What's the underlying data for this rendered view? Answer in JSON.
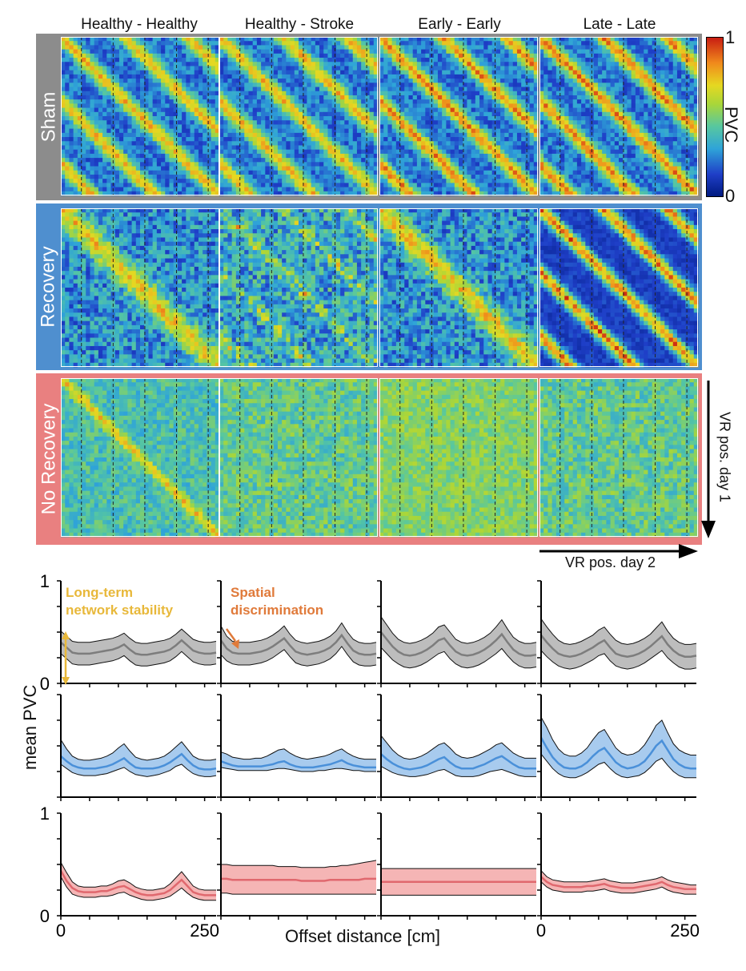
{
  "column_titles": [
    "Healthy - Healthy",
    "Healthy - Stroke",
    "Early - Early",
    "Late - Late"
  ],
  "row_labels": [
    "Sham",
    "Recovery",
    "No Recovery"
  ],
  "row_colors": {
    "Sham": "#8c8c8c",
    "Recovery": "#4f8fcf",
    "No Recovery": "#e98080"
  },
  "colorbar": {
    "label": "PVC",
    "max_label": "1",
    "min_label": "0",
    "colormap": [
      "#001a80",
      "#1f3fc8",
      "#2fa4d8",
      "#57c7a0",
      "#a8d63a",
      "#e6d821",
      "#f08a1c",
      "#c81d12"
    ]
  },
  "axis_arrows": {
    "vertical": "VR pos. day 1",
    "horizontal": "VR pos. day 2"
  },
  "annotations": {
    "stability": "Long-term\nnetwork stability",
    "stability_color": "#e8b83a",
    "discrimination": "Spatial\ndiscrimination",
    "discrimination_color": "#e07a3a"
  },
  "chart_data": {
    "type": "line",
    "title": "",
    "xlabel": "Offset distance [cm]",
    "ylabel": "mean PVC",
    "xlim": [
      0,
      270
    ],
    "ylim": [
      0,
      1
    ],
    "xticks": [
      0,
      250
    ],
    "yticks_labeled": [
      0,
      1
    ],
    "x": [
      0,
      10,
      20,
      30,
      40,
      50,
      60,
      70,
      80,
      90,
      100,
      110,
      120,
      130,
      140,
      150,
      160,
      170,
      180,
      190,
      200,
      210,
      220,
      230,
      240,
      250,
      260,
      270
    ],
    "panels": [
      {
        "row": "Sham",
        "column": "Healthy - Healthy",
        "mean": [
          0.4,
          0.35,
          0.3,
          0.29,
          0.29,
          0.29,
          0.3,
          0.31,
          0.32,
          0.33,
          0.35,
          0.38,
          0.33,
          0.29,
          0.28,
          0.28,
          0.29,
          0.3,
          0.31,
          0.33,
          0.37,
          0.42,
          0.37,
          0.32,
          0.3,
          0.29,
          0.29,
          0.3
        ],
        "upper": [
          0.51,
          0.46,
          0.41,
          0.4,
          0.4,
          0.4,
          0.41,
          0.42,
          0.43,
          0.44,
          0.46,
          0.49,
          0.44,
          0.4,
          0.39,
          0.39,
          0.4,
          0.41,
          0.42,
          0.44,
          0.48,
          0.53,
          0.48,
          0.43,
          0.41,
          0.4,
          0.4,
          0.41
        ],
        "lower": [
          0.29,
          0.24,
          0.19,
          0.18,
          0.18,
          0.18,
          0.19,
          0.2,
          0.21,
          0.22,
          0.24,
          0.27,
          0.22,
          0.18,
          0.17,
          0.17,
          0.18,
          0.19,
          0.2,
          0.22,
          0.26,
          0.31,
          0.26,
          0.21,
          0.19,
          0.18,
          0.18,
          0.19
        ]
      },
      {
        "row": "Sham",
        "column": "Healthy - Stroke",
        "mean": [
          0.42,
          0.34,
          0.3,
          0.29,
          0.29,
          0.29,
          0.3,
          0.31,
          0.33,
          0.36,
          0.4,
          0.44,
          0.37,
          0.31,
          0.29,
          0.28,
          0.29,
          0.3,
          0.32,
          0.35,
          0.4,
          0.47,
          0.39,
          0.32,
          0.29,
          0.28,
          0.28,
          0.29
        ],
        "upper": [
          0.56,
          0.46,
          0.41,
          0.4,
          0.4,
          0.4,
          0.41,
          0.42,
          0.44,
          0.47,
          0.51,
          0.56,
          0.48,
          0.42,
          0.4,
          0.39,
          0.4,
          0.41,
          0.43,
          0.46,
          0.51,
          0.59,
          0.5,
          0.43,
          0.4,
          0.39,
          0.39,
          0.4
        ],
        "lower": [
          0.28,
          0.22,
          0.19,
          0.18,
          0.18,
          0.18,
          0.19,
          0.2,
          0.22,
          0.25,
          0.29,
          0.33,
          0.26,
          0.2,
          0.18,
          0.17,
          0.18,
          0.19,
          0.21,
          0.24,
          0.29,
          0.36,
          0.28,
          0.21,
          0.18,
          0.17,
          0.17,
          0.18
        ]
      },
      {
        "row": "Sham",
        "column": "Early - Early",
        "mean": [
          0.5,
          0.43,
          0.36,
          0.31,
          0.28,
          0.27,
          0.28,
          0.3,
          0.33,
          0.37,
          0.42,
          0.44,
          0.37,
          0.31,
          0.28,
          0.27,
          0.28,
          0.3,
          0.33,
          0.37,
          0.42,
          0.48,
          0.4,
          0.33,
          0.29,
          0.27,
          0.27,
          0.28
        ],
        "upper": [
          0.65,
          0.57,
          0.49,
          0.43,
          0.4,
          0.39,
          0.4,
          0.42,
          0.45,
          0.49,
          0.55,
          0.57,
          0.5,
          0.43,
          0.4,
          0.39,
          0.4,
          0.42,
          0.45,
          0.49,
          0.55,
          0.62,
          0.53,
          0.45,
          0.41,
          0.39,
          0.39,
          0.4
        ],
        "lower": [
          0.35,
          0.29,
          0.23,
          0.19,
          0.16,
          0.15,
          0.16,
          0.18,
          0.21,
          0.25,
          0.29,
          0.31,
          0.24,
          0.19,
          0.16,
          0.15,
          0.16,
          0.18,
          0.21,
          0.25,
          0.29,
          0.34,
          0.27,
          0.21,
          0.17,
          0.15,
          0.15,
          0.16
        ]
      },
      {
        "row": "Sham",
        "column": "Late - Late",
        "mean": [
          0.47,
          0.4,
          0.34,
          0.29,
          0.27,
          0.26,
          0.27,
          0.29,
          0.32,
          0.35,
          0.39,
          0.42,
          0.35,
          0.29,
          0.27,
          0.26,
          0.27,
          0.29,
          0.32,
          0.36,
          0.41,
          0.46,
          0.38,
          0.32,
          0.28,
          0.26,
          0.26,
          0.27
        ],
        "upper": [
          0.63,
          0.55,
          0.48,
          0.42,
          0.39,
          0.38,
          0.39,
          0.41,
          0.44,
          0.47,
          0.52,
          0.55,
          0.48,
          0.42,
          0.39,
          0.38,
          0.39,
          0.41,
          0.44,
          0.48,
          0.54,
          0.6,
          0.51,
          0.44,
          0.4,
          0.38,
          0.38,
          0.39
        ],
        "lower": [
          0.32,
          0.26,
          0.21,
          0.17,
          0.15,
          0.14,
          0.15,
          0.17,
          0.2,
          0.23,
          0.27,
          0.29,
          0.22,
          0.17,
          0.15,
          0.14,
          0.15,
          0.17,
          0.2,
          0.24,
          0.28,
          0.32,
          0.25,
          0.2,
          0.16,
          0.14,
          0.14,
          0.15
        ]
      },
      {
        "row": "Recovery",
        "column": "Healthy - Healthy",
        "mean": [
          0.4,
          0.35,
          0.31,
          0.29,
          0.28,
          0.28,
          0.28,
          0.29,
          0.3,
          0.32,
          0.35,
          0.38,
          0.33,
          0.29,
          0.28,
          0.28,
          0.28,
          0.29,
          0.31,
          0.34,
          0.38,
          0.42,
          0.36,
          0.31,
          0.28,
          0.27,
          0.27,
          0.28
        ],
        "upper": [
          0.56,
          0.47,
          0.4,
          0.37,
          0.36,
          0.36,
          0.37,
          0.38,
          0.4,
          0.43,
          0.48,
          0.52,
          0.45,
          0.39,
          0.37,
          0.36,
          0.37,
          0.38,
          0.4,
          0.44,
          0.49,
          0.54,
          0.47,
          0.4,
          0.37,
          0.36,
          0.36,
          0.37
        ],
        "lower": [
          0.32,
          0.28,
          0.24,
          0.22,
          0.21,
          0.21,
          0.21,
          0.22,
          0.23,
          0.25,
          0.27,
          0.29,
          0.25,
          0.22,
          0.21,
          0.2,
          0.21,
          0.22,
          0.24,
          0.26,
          0.3,
          0.32,
          0.27,
          0.23,
          0.21,
          0.2,
          0.2,
          0.21
        ]
      },
      {
        "row": "Recovery",
        "column": "Healthy - Stroke",
        "mean": [
          0.35,
          0.33,
          0.31,
          0.3,
          0.3,
          0.3,
          0.3,
          0.3,
          0.31,
          0.32,
          0.34,
          0.35,
          0.32,
          0.3,
          0.29,
          0.29,
          0.29,
          0.3,
          0.31,
          0.32,
          0.34,
          0.36,
          0.33,
          0.31,
          0.3,
          0.29,
          0.29,
          0.29
        ],
        "upper": [
          0.44,
          0.42,
          0.39,
          0.38,
          0.37,
          0.37,
          0.38,
          0.38,
          0.4,
          0.43,
          0.46,
          0.47,
          0.43,
          0.4,
          0.38,
          0.37,
          0.38,
          0.39,
          0.4,
          0.42,
          0.45,
          0.47,
          0.43,
          0.4,
          0.38,
          0.37,
          0.37,
          0.37
        ],
        "lower": [
          0.29,
          0.28,
          0.27,
          0.26,
          0.26,
          0.26,
          0.26,
          0.26,
          0.26,
          0.27,
          0.28,
          0.28,
          0.27,
          0.26,
          0.25,
          0.25,
          0.25,
          0.26,
          0.26,
          0.27,
          0.28,
          0.28,
          0.27,
          0.26,
          0.26,
          0.25,
          0.25,
          0.25
        ]
      },
      {
        "row": "Recovery",
        "column": "Early - Early",
        "mean": [
          0.42,
          0.37,
          0.33,
          0.3,
          0.28,
          0.27,
          0.28,
          0.29,
          0.31,
          0.34,
          0.37,
          0.39,
          0.34,
          0.3,
          0.28,
          0.28,
          0.28,
          0.3,
          0.32,
          0.35,
          0.38,
          0.4,
          0.36,
          0.32,
          0.29,
          0.28,
          0.28,
          0.28
        ],
        "upper": [
          0.6,
          0.53,
          0.46,
          0.41,
          0.38,
          0.37,
          0.38,
          0.4,
          0.43,
          0.47,
          0.51,
          0.53,
          0.48,
          0.42,
          0.39,
          0.38,
          0.39,
          0.41,
          0.44,
          0.47,
          0.51,
          0.53,
          0.48,
          0.43,
          0.4,
          0.38,
          0.38,
          0.38
        ],
        "lower": [
          0.3,
          0.27,
          0.24,
          0.22,
          0.21,
          0.2,
          0.2,
          0.21,
          0.22,
          0.24,
          0.26,
          0.27,
          0.24,
          0.21,
          0.2,
          0.2,
          0.2,
          0.21,
          0.23,
          0.25,
          0.26,
          0.27,
          0.25,
          0.23,
          0.21,
          0.2,
          0.2,
          0.2
        ]
      },
      {
        "row": "Recovery",
        "column": "Late - Late",
        "mean": [
          0.58,
          0.48,
          0.39,
          0.33,
          0.29,
          0.28,
          0.28,
          0.3,
          0.34,
          0.4,
          0.45,
          0.48,
          0.41,
          0.34,
          0.3,
          0.28,
          0.29,
          0.31,
          0.35,
          0.42,
          0.5,
          0.55,
          0.46,
          0.37,
          0.32,
          0.29,
          0.28,
          0.28
        ],
        "upper": [
          0.78,
          0.68,
          0.56,
          0.47,
          0.42,
          0.4,
          0.4,
          0.43,
          0.48,
          0.56,
          0.63,
          0.66,
          0.57,
          0.48,
          0.43,
          0.41,
          0.42,
          0.45,
          0.51,
          0.6,
          0.7,
          0.75,
          0.63,
          0.52,
          0.46,
          0.43,
          0.41,
          0.41
        ],
        "lower": [
          0.42,
          0.35,
          0.28,
          0.23,
          0.2,
          0.19,
          0.19,
          0.21,
          0.24,
          0.28,
          0.32,
          0.34,
          0.28,
          0.23,
          0.2,
          0.19,
          0.2,
          0.21,
          0.24,
          0.29,
          0.35,
          0.38,
          0.31,
          0.25,
          0.21,
          0.19,
          0.19,
          0.19
        ]
      },
      {
        "row": "No Recovery",
        "column": "Healthy - Healthy",
        "mean": [
          0.44,
          0.34,
          0.27,
          0.24,
          0.23,
          0.23,
          0.23,
          0.24,
          0.24,
          0.26,
          0.28,
          0.29,
          0.26,
          0.23,
          0.21,
          0.2,
          0.2,
          0.21,
          0.22,
          0.25,
          0.3,
          0.35,
          0.29,
          0.23,
          0.21,
          0.2,
          0.2,
          0.2
        ],
        "upper": [
          0.52,
          0.42,
          0.33,
          0.29,
          0.28,
          0.28,
          0.28,
          0.29,
          0.29,
          0.31,
          0.34,
          0.35,
          0.32,
          0.28,
          0.26,
          0.25,
          0.25,
          0.26,
          0.27,
          0.31,
          0.37,
          0.43,
          0.36,
          0.29,
          0.26,
          0.25,
          0.25,
          0.25
        ],
        "lower": [
          0.38,
          0.28,
          0.21,
          0.19,
          0.18,
          0.18,
          0.18,
          0.19,
          0.19,
          0.2,
          0.22,
          0.23,
          0.2,
          0.18,
          0.16,
          0.15,
          0.15,
          0.16,
          0.17,
          0.19,
          0.23,
          0.27,
          0.22,
          0.18,
          0.16,
          0.15,
          0.15,
          0.15
        ]
      },
      {
        "row": "No Recovery",
        "column": "Healthy - Stroke",
        "mean": [
          0.36,
          0.36,
          0.35,
          0.35,
          0.35,
          0.35,
          0.35,
          0.35,
          0.35,
          0.35,
          0.35,
          0.35,
          0.35,
          0.35,
          0.34,
          0.34,
          0.34,
          0.34,
          0.34,
          0.35,
          0.35,
          0.35,
          0.35,
          0.35,
          0.35,
          0.36,
          0.36,
          0.36
        ],
        "upper": [
          0.5,
          0.5,
          0.49,
          0.49,
          0.49,
          0.49,
          0.49,
          0.49,
          0.49,
          0.49,
          0.48,
          0.48,
          0.48,
          0.48,
          0.47,
          0.47,
          0.47,
          0.47,
          0.47,
          0.48,
          0.48,
          0.49,
          0.49,
          0.5,
          0.51,
          0.52,
          0.53,
          0.54
        ],
        "lower": [
          0.22,
          0.22,
          0.21,
          0.21,
          0.21,
          0.21,
          0.21,
          0.21,
          0.21,
          0.21,
          0.21,
          0.21,
          0.21,
          0.21,
          0.21,
          0.21,
          0.21,
          0.21,
          0.21,
          0.21,
          0.21,
          0.21,
          0.21,
          0.21,
          0.21,
          0.21,
          0.21,
          0.21
        ]
      },
      {
        "row": "No Recovery",
        "column": "Early - Early",
        "mean": [
          0.33,
          0.33,
          0.33,
          0.33,
          0.33,
          0.33,
          0.33,
          0.33,
          0.33,
          0.33,
          0.33,
          0.33,
          0.33,
          0.33,
          0.33,
          0.33,
          0.33,
          0.33,
          0.33,
          0.33,
          0.33,
          0.33,
          0.33,
          0.33,
          0.33,
          0.33,
          0.33,
          0.33
        ],
        "upper": [
          0.46,
          0.46,
          0.46,
          0.46,
          0.46,
          0.46,
          0.46,
          0.46,
          0.46,
          0.46,
          0.46,
          0.46,
          0.46,
          0.46,
          0.46,
          0.46,
          0.46,
          0.46,
          0.46,
          0.46,
          0.46,
          0.46,
          0.46,
          0.46,
          0.46,
          0.46,
          0.46,
          0.46
        ],
        "lower": [
          0.2,
          0.2,
          0.2,
          0.2,
          0.2,
          0.2,
          0.2,
          0.2,
          0.2,
          0.2,
          0.2,
          0.2,
          0.2,
          0.2,
          0.2,
          0.2,
          0.2,
          0.2,
          0.2,
          0.2,
          0.2,
          0.2,
          0.2,
          0.2,
          0.2,
          0.2,
          0.2,
          0.2
        ]
      },
      {
        "row": "No Recovery",
        "column": "Late - Late",
        "mean": [
          0.38,
          0.33,
          0.3,
          0.29,
          0.28,
          0.28,
          0.28,
          0.28,
          0.29,
          0.29,
          0.3,
          0.31,
          0.29,
          0.28,
          0.27,
          0.27,
          0.27,
          0.28,
          0.29,
          0.3,
          0.31,
          0.33,
          0.3,
          0.28,
          0.27,
          0.26,
          0.26,
          0.26
        ],
        "upper": [
          0.44,
          0.38,
          0.35,
          0.34,
          0.33,
          0.33,
          0.33,
          0.33,
          0.33,
          0.34,
          0.35,
          0.36,
          0.34,
          0.33,
          0.32,
          0.32,
          0.32,
          0.33,
          0.34,
          0.35,
          0.36,
          0.38,
          0.35,
          0.33,
          0.32,
          0.31,
          0.3,
          0.3
        ],
        "lower": [
          0.33,
          0.28,
          0.25,
          0.24,
          0.23,
          0.23,
          0.23,
          0.23,
          0.24,
          0.24,
          0.25,
          0.26,
          0.24,
          0.23,
          0.22,
          0.22,
          0.22,
          0.23,
          0.24,
          0.25,
          0.26,
          0.28,
          0.25,
          0.23,
          0.22,
          0.21,
          0.21,
          0.21
        ]
      }
    ],
    "line_colors": {
      "Sham": "#7d7d7d",
      "Recovery": "#4a90d9",
      "No Recovery": "#e0686e"
    },
    "fill_colors": {
      "Sham": "#bdbdbd",
      "Recovery": "#a8cbee",
      "No Recovery": "#f5b5b5"
    }
  }
}
